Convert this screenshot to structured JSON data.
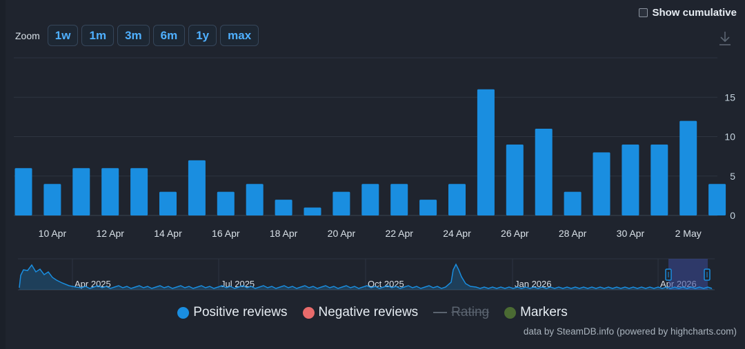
{
  "controls": {
    "cumulative_label": "Show cumulative",
    "zoom_label": "Zoom",
    "zoom_buttons": [
      "1w",
      "1m",
      "3m",
      "6m",
      "1y",
      "max"
    ]
  },
  "chart_data": {
    "type": "bar",
    "title": "",
    "xlabel": "",
    "ylabel": "",
    "x_tick_labels": [
      "10 Apr",
      "12 Apr",
      "14 Apr",
      "16 Apr",
      "18 Apr",
      "20 Apr",
      "22 Apr",
      "24 Apr",
      "26 Apr",
      "28 Apr",
      "30 Apr",
      "2 May"
    ],
    "y_ticks": [
      0,
      5,
      10,
      15
    ],
    "ylim": [
      0,
      20
    ],
    "grid": true,
    "series": [
      {
        "name": "Positive reviews",
        "color": "#1a8ee0",
        "x": [
          "9 Apr",
          "10 Apr",
          "11 Apr",
          "12 Apr",
          "13 Apr",
          "14 Apr",
          "15 Apr",
          "16 Apr",
          "17 Apr",
          "18 Apr",
          "19 Apr",
          "20 Apr",
          "21 Apr",
          "22 Apr",
          "23 Apr",
          "24 Apr",
          "25 Apr",
          "26 Apr",
          "27 Apr",
          "28 Apr",
          "29 Apr",
          "30 Apr",
          "1 May",
          "2 May",
          "3 May"
        ],
        "values": [
          6,
          4,
          6,
          6,
          6,
          3,
          7,
          3,
          4,
          2,
          1,
          3,
          4,
          4,
          2,
          4,
          16,
          9,
          11,
          3,
          8,
          9,
          9,
          12,
          4
        ]
      }
    ],
    "legend": {
      "placement": "bottom-center",
      "items": [
        {
          "label": "Positive reviews",
          "color": "#1a8ee0",
          "visible": true
        },
        {
          "label": "Negative reviews",
          "color": "#e86b6b",
          "visible": true
        },
        {
          "label": "Rating",
          "color": "#5b6470",
          "visible": false
        },
        {
          "label": "Markers",
          "color": "#4b6b33",
          "visible": true
        }
      ]
    },
    "navigator": {
      "labels": [
        "Apr 2025",
        "Jul 2025",
        "Oct 2025",
        "Jan 2026",
        "Apr 2026"
      ]
    }
  },
  "credits": "data by SteamDB.info (powered by highcharts.com)"
}
